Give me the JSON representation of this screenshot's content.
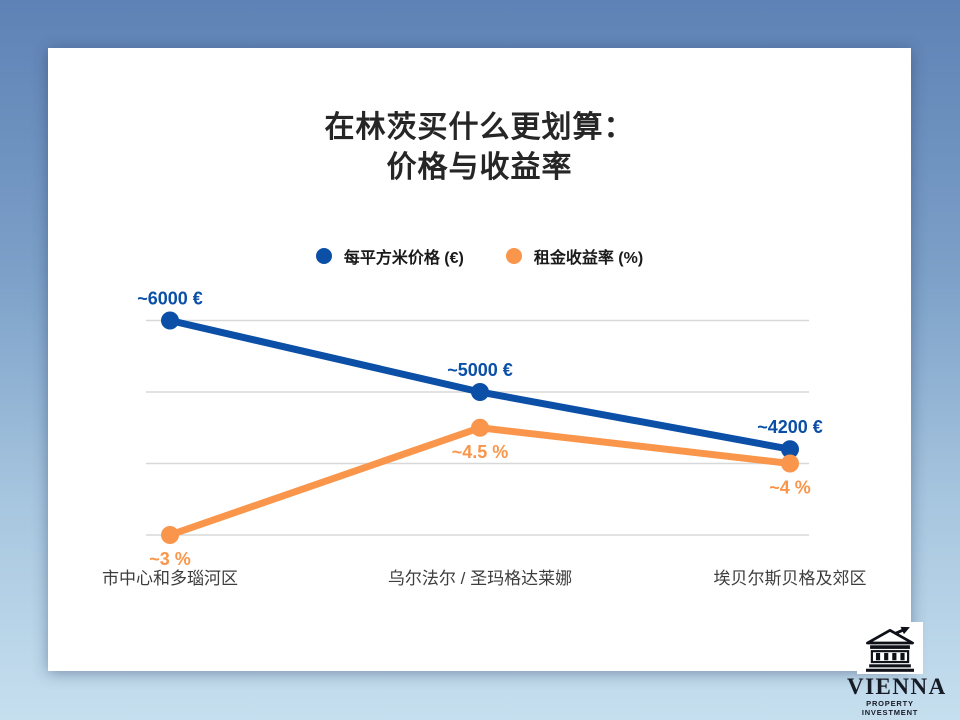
{
  "title": {
    "line1": "在林茨买什么更划算：",
    "line2": "价格与收益率"
  },
  "legend": {
    "items": [
      {
        "label": "每平方米价格 (€)",
        "color": "#0B4FA7"
      },
      {
        "label": "租金收益率 (%)",
        "color": "#F9964B"
      }
    ]
  },
  "chart_data": {
    "type": "line",
    "title": "在林茨买什么更划算：价格与收益率",
    "legend_position": "top",
    "grid": true,
    "categories": [
      "市中心和多瑙河区",
      "乌尔法尔 / 圣玛格达莱娜",
      "埃贝尔斯贝格及郊区"
    ],
    "series": [
      {
        "name": "每平方米价格 (€)",
        "color": "#0B4FA7",
        "values": [
          6000,
          5000,
          4200
        ],
        "point_labels": [
          "~6000 €",
          "~5000 €",
          "~4200 €"
        ],
        "label_position": "above"
      },
      {
        "name": "租金收益率 (%)",
        "color": "#F9964B",
        "values": [
          3,
          4.5,
          4
        ],
        "point_labels": [
          "~3 %",
          "~4.5 %",
          "~4 %"
        ],
        "label_position": "below"
      }
    ]
  },
  "logo": {
    "brand": "VIENNA",
    "tagline": "PROPERTY INVESTMENT"
  },
  "colors": {
    "background_top": "#5E82B5",
    "background_bottom": "#C6DFEF",
    "card": "#FFFFFF",
    "gridline": "#D8D8D8",
    "price_series": "#0B4FA7",
    "yield_series": "#F9964B",
    "title_text": "#262626",
    "axis_text": "#3D3D3D",
    "logo_text": "#161B26"
  }
}
